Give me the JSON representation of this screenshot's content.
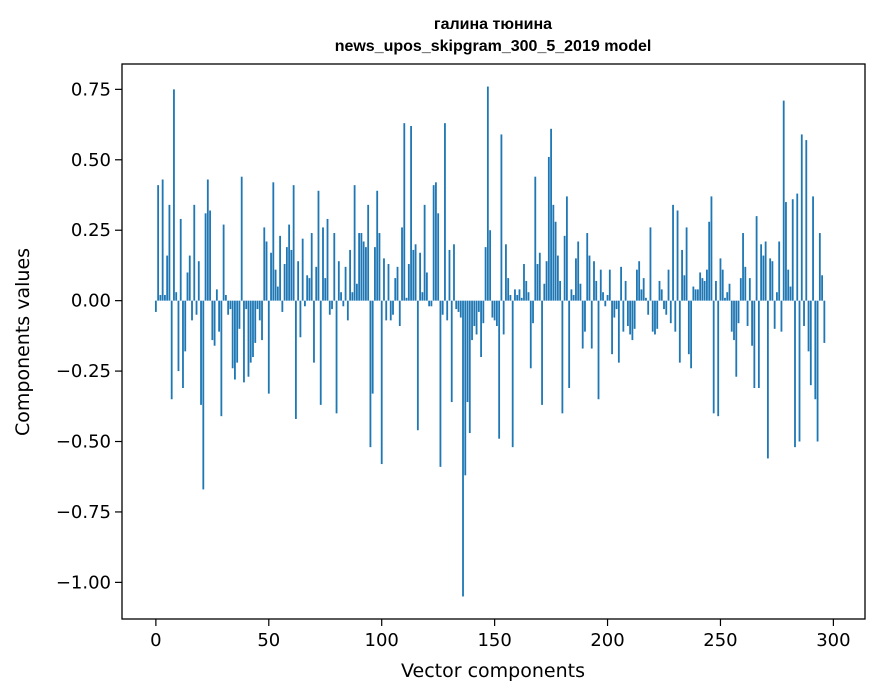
{
  "chart_data": {
    "type": "bar",
    "title": "галина тюнина",
    "subtitle": "news_upos_skipgram_300_5_2019 model",
    "xlabel": "Vector components",
    "ylabel": "Components values",
    "xlim": [
      -15,
      314
    ],
    "ylim": [
      -1.13,
      0.84
    ],
    "x_ticks": [
      0,
      50,
      100,
      150,
      200,
      250,
      300
    ],
    "x_tick_labels": [
      "0",
      "50",
      "100",
      "150",
      "200",
      "250",
      "300"
    ],
    "y_ticks": [
      0.75,
      0.5,
      0.25,
      0.0,
      -0.25,
      -0.5,
      -0.75,
      -1.0
    ],
    "y_tick_labels": [
      "0.75",
      "0.50",
      "0.25",
      "0.00",
      "−0.25",
      "−0.50",
      "−0.75",
      "−1.00"
    ],
    "grid": false,
    "bar_color": "#1f77b4",
    "x": "indices 0..299",
    "values": [
      -0.04,
      0.41,
      0.02,
      0.43,
      0.02,
      0.16,
      0.34,
      -0.35,
      0.75,
      0.03,
      -0.25,
      0.29,
      -0.31,
      -0.18,
      0.1,
      0.16,
      -0.07,
      0.34,
      -0.05,
      0.14,
      -0.37,
      -0.67,
      0.31,
      0.43,
      0.32,
      -0.14,
      -0.16,
      0.04,
      -0.11,
      -0.41,
      0.27,
      0.02,
      -0.05,
      -0.03,
      -0.24,
      -0.28,
      -0.22,
      -0.1,
      0.44,
      -0.29,
      -0.03,
      -0.27,
      -0.22,
      -0.2,
      -0.15,
      -0.03,
      -0.07,
      -0.14,
      0.26,
      0.21,
      -0.33,
      0.17,
      0.42,
      0.11,
      0.05,
      0.23,
      -0.04,
      0.13,
      0.19,
      0.27,
      0.18,
      0.41,
      -0.42,
      0.14,
      -0.13,
      0.22,
      -0.02,
      0.09,
      0.08,
      0.24,
      -0.22,
      0.12,
      0.39,
      -0.37,
      0.26,
      0.08,
      0.29,
      -0.05,
      -0.03,
      0.24,
      -0.4,
      0.14,
      0.03,
      -0.02,
      0.12,
      -0.07,
      0.18,
      0.03,
      0.41,
      0.06,
      0.24,
      0.24,
      0.21,
      0.19,
      0.34,
      -0.52,
      -0.33,
      0.19,
      0.39,
      0.24,
      -0.58,
      0.15,
      -0.07,
      0.13,
      -0.07,
      -0.05,
      0.08,
      0.12,
      -0.09,
      0.26,
      0.63,
      0.01,
      0.13,
      0.62,
      0.18,
      0.2,
      -0.46,
      0.17,
      0.03,
      0.34,
      0.1,
      -0.02,
      -0.02,
      0.41,
      0.42,
      0.31,
      -0.59,
      -0.05,
      0.63,
      -0.07,
      0.18,
      -0.36,
      0.2,
      -0.03,
      -0.04,
      -0.06,
      -1.05,
      -0.62,
      -0.36,
      -0.47,
      -0.14,
      -0.09,
      -0.12,
      -0.04,
      -0.2,
      -0.08,
      0.19,
      0.76,
      0.25,
      -0.06,
      -0.07,
      -0.09,
      -0.49,
      0.59,
      -0.12,
      0.2,
      0.08,
      0.02,
      -0.52,
      0.04,
      0.02,
      0.04,
      0.01,
      0.13,
      0.07,
      0.03,
      -0.24,
      -0.08,
      0.44,
      0.13,
      0.17,
      -0.37,
      0.06,
      0.14,
      0.51,
      0.61,
      0.34,
      0.28,
      0.16,
      0.07,
      -0.4,
      0.23,
      0.37,
      -0.31,
      0.04,
      0.02,
      0.15,
      0.21,
      0.06,
      -0.17,
      -0.11,
      0.24,
      0.16,
      -0.17,
      0.14,
      0.07,
      -0.35,
      0.11,
      0.03,
      -0.02,
      0.02,
      0.11,
      -0.19,
      -0.06,
      -0.03,
      -0.22,
      0.12,
      -0.11,
      0.07,
      -0.09,
      -0.12,
      -0.14,
      -0.1,
      0.11,
      0.14,
      0.04,
      0.08,
      0.01,
      -0.05,
      0.26,
      -0.11,
      -0.12,
      -0.1,
      0.07,
      0.04,
      -0.03,
      -0.05,
      0.11,
      -0.08,
      0.34,
      -0.11,
      0.32,
      -0.22,
      0.18,
      0.09,
      0.26,
      -0.19,
      -0.24,
      0.05,
      0.04,
      0.04,
      0.1,
      0.08,
      0.07,
      0.11,
      0.28,
      0.37,
      -0.4,
      0.07,
      -0.41,
      0.15,
      0.11,
      0.01,
      0.03,
      0.06,
      -0.11,
      -0.14,
      -0.27,
      -0.08,
      0.08,
      0.24,
      0.12,
      -0.09,
      0.08,
      -0.16,
      -0.31,
      0.3,
      -0.31,
      0.2,
      0.16,
      0.21,
      -0.56,
      0.15,
      0.14,
      -0.1,
      0.03,
      0.21,
      -0.11,
      0.71,
      0.35,
      0.11,
      0.05,
      0.36,
      -0.52,
      0.38,
      -0.5,
      0.59,
      -0.09,
      0.57,
      -0.18,
      -0.3,
      0.37,
      -0.35,
      -0.5,
      0.24,
      0.09,
      -0.15
    ]
  }
}
